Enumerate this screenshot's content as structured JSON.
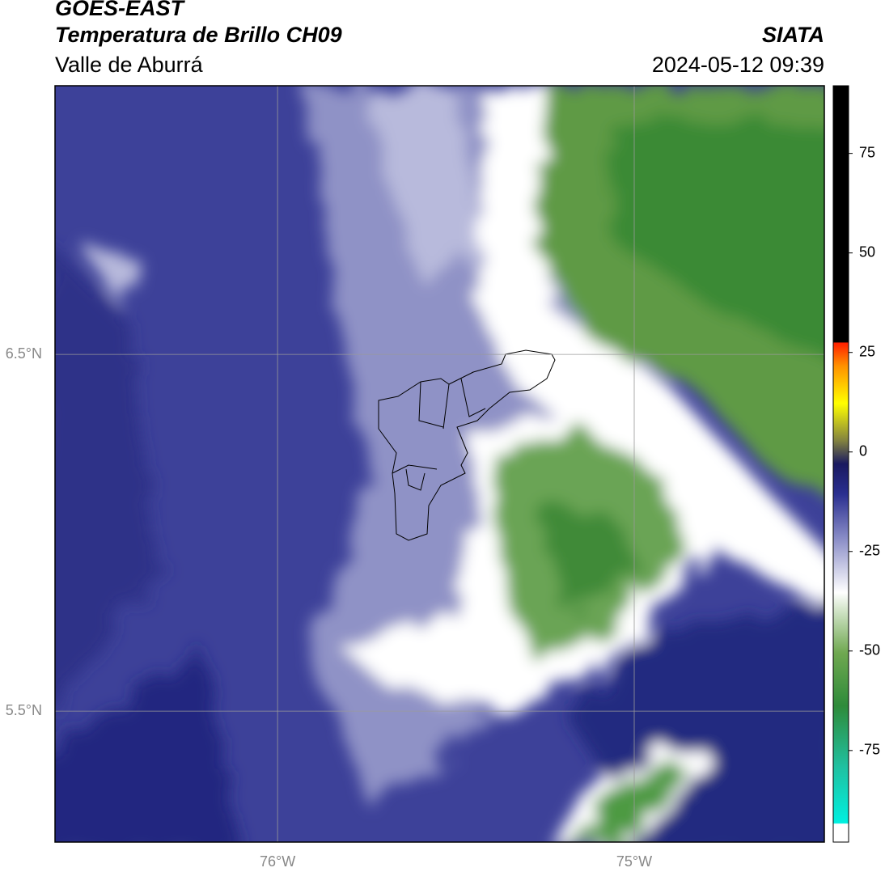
{
  "chart_data": {
    "type": "map",
    "title": "GOES-EAST",
    "subtitle": "Temperatura de Brillo CH09",
    "region": "Valle de Aburrá",
    "source": "SIATA",
    "datetime": "2024-05-12 09:39",
    "xlim": [
      -76.624,
      -74.467
    ],
    "ylim": [
      5.133,
      7.253
    ],
    "xticks": [
      {
        "value": -76,
        "label": "76°W"
      },
      {
        "value": -75,
        "label": "75°W"
      }
    ],
    "yticks": [
      {
        "value": 6.5,
        "label": "6.5°N"
      },
      {
        "value": 5.5,
        "label": "5.5°N"
      }
    ],
    "grid": true,
    "colorbar": {
      "lim": [
        -98,
        92
      ],
      "ticks": [
        75,
        50,
        25,
        0,
        -25,
        -50,
        -75
      ]
    }
  }
}
